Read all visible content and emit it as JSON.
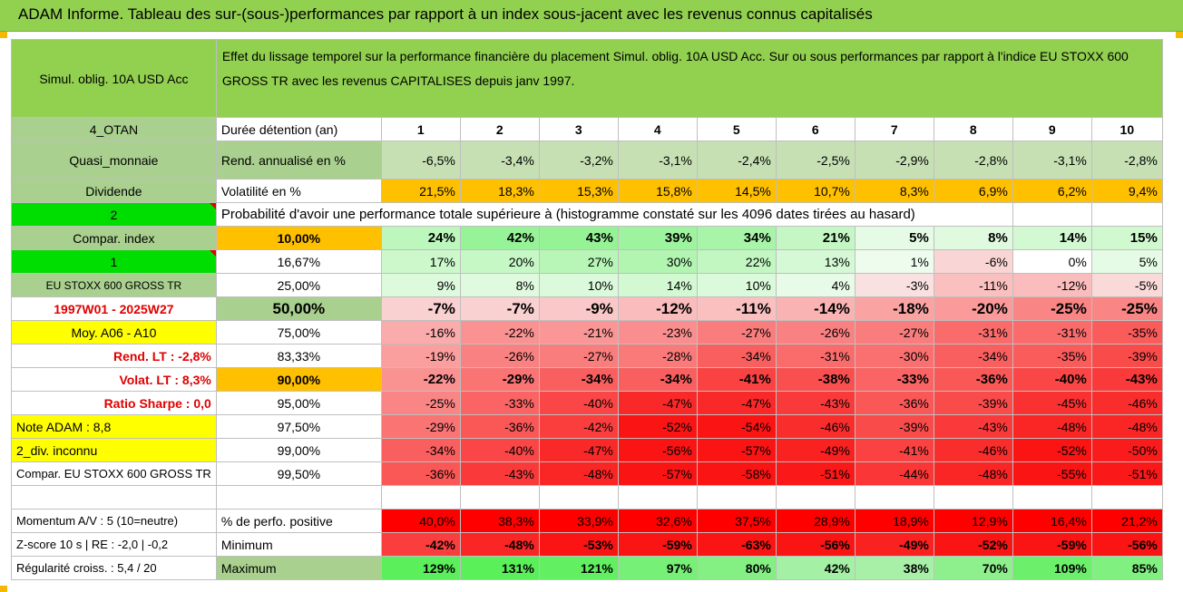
{
  "title": "ADAM Informe. Tableau des sur-(sous-)performances par rapport à un index sous-jacent avec les revenus connus capitalisés",
  "header": {
    "fund": "Simul. oblig. 10A USD Acc",
    "description": "Effet du lissage temporel sur la performance financière du placement Simul. oblig. 10A USD Acc. Sur ou sous performances par rapport à l'indice EU STOXX 600 GROSS TR avec les revenus CAPITALISES depuis janv 1997."
  },
  "side": {
    "otan": "4_OTAN",
    "quasi": "Quasi_monnaie",
    "dividende": "Dividende",
    "two": "2",
    "compar_index": "Compar. index",
    "one": "1",
    "index_name": "EU STOXX 600 GROSS TR",
    "period": "1997W01 - 2025W27",
    "moy": "Moy. A06 - A10",
    "rend_lt": "Rend. LT :    -2,8%",
    "volat_lt": "Volat. LT :    8,3%",
    "sharpe": "Ratio Sharpe :    0,0",
    "note": "Note ADAM : 8,8",
    "div": "2_div. inconnu",
    "compar_full": "Compar. EU STOXX 600 GROSS TR",
    "momentum": "Momentum A/V : 5 (10=neutre)",
    "zscore": "Z-score 10 s | RE : -2,0 | -0,2",
    "regularite": "Régularité croiss. : 5,4 / 20"
  },
  "labels": {
    "duree": "Durée détention (an)",
    "rend": "Rend. annualisé en %",
    "vol": "Volatilité en %",
    "proba": "Probabilité d'avoir une performance totale supérieure à (histogramme constaté sur les 4096 dates tirées au hasard)",
    "pct_pos": "% de perfo. positive",
    "min": "Minimum",
    "max": "Maximum"
  },
  "years": [
    "1",
    "2",
    "3",
    "4",
    "5",
    "6",
    "7",
    "8",
    "9",
    "10"
  ],
  "rend": [
    "-6,5%",
    "-3,4%",
    "-3,2%",
    "-3,1%",
    "-2,4%",
    "-2,5%",
    "-2,9%",
    "-2,8%",
    "-3,1%",
    "-2,8%"
  ],
  "vol": [
    "21,5%",
    "18,3%",
    "15,3%",
    "15,8%",
    "14,5%",
    "10,7%",
    "8,3%",
    "6,9%",
    "6,2%",
    "9,4%"
  ],
  "quantiles": [
    {
      "q": "10,00%",
      "vals": [
        "24%",
        "42%",
        "43%",
        "39%",
        "34%",
        "21%",
        "5%",
        "8%",
        "14%",
        "15%"
      ],
      "bold": true
    },
    {
      "q": "16,67%",
      "vals": [
        "17%",
        "20%",
        "27%",
        "30%",
        "22%",
        "13%",
        "1%",
        "-6%",
        "0%",
        "5%"
      ],
      "bold": false
    },
    {
      "q": "25,00%",
      "vals": [
        "9%",
        "8%",
        "10%",
        "14%",
        "10%",
        "4%",
        "-3%",
        "-11%",
        "-12%",
        "-5%"
      ],
      "bold": false
    },
    {
      "q": "50,00%",
      "vals": [
        "-7%",
        "-7%",
        "-9%",
        "-12%",
        "-11%",
        "-14%",
        "-18%",
        "-20%",
        "-25%",
        "-25%"
      ],
      "bold": true
    },
    {
      "q": "75,00%",
      "vals": [
        "-16%",
        "-22%",
        "-21%",
        "-23%",
        "-27%",
        "-26%",
        "-27%",
        "-31%",
        "-31%",
        "-35%"
      ],
      "bold": false
    },
    {
      "q": "83,33%",
      "vals": [
        "-19%",
        "-26%",
        "-27%",
        "-28%",
        "-34%",
        "-31%",
        "-30%",
        "-34%",
        "-35%",
        "-39%"
      ],
      "bold": false
    },
    {
      "q": "90,00%",
      "vals": [
        "-22%",
        "-29%",
        "-34%",
        "-34%",
        "-41%",
        "-38%",
        "-33%",
        "-36%",
        "-40%",
        "-43%"
      ],
      "bold": true
    },
    {
      "q": "95,00%",
      "vals": [
        "-25%",
        "-33%",
        "-40%",
        "-47%",
        "-47%",
        "-43%",
        "-36%",
        "-39%",
        "-45%",
        "-46%"
      ],
      "bold": false
    },
    {
      "q": "97,50%",
      "vals": [
        "-29%",
        "-36%",
        "-42%",
        "-52%",
        "-54%",
        "-46%",
        "-39%",
        "-43%",
        "-48%",
        "-48%"
      ],
      "bold": false
    },
    {
      "q": "99,00%",
      "vals": [
        "-34%",
        "-40%",
        "-47%",
        "-56%",
        "-57%",
        "-49%",
        "-41%",
        "-46%",
        "-52%",
        "-50%"
      ],
      "bold": false
    },
    {
      "q": "99,50%",
      "vals": [
        "-36%",
        "-43%",
        "-48%",
        "-57%",
        "-58%",
        "-51%",
        "-44%",
        "-48%",
        "-55%",
        "-51%"
      ],
      "bold": false
    }
  ],
  "pct_pos": [
    "40,0%",
    "38,3%",
    "33,9%",
    "32,6%",
    "37,5%",
    "28,9%",
    "18,9%",
    "12,9%",
    "16,4%",
    "21,2%"
  ],
  "minimum": [
    "-42%",
    "-48%",
    "-53%",
    "-59%",
    "-63%",
    "-56%",
    "-49%",
    "-52%",
    "-59%",
    "-56%"
  ],
  "maximum": [
    "129%",
    "131%",
    "121%",
    "97%",
    "80%",
    "42%",
    "38%",
    "70%",
    "109%",
    "85%"
  ]
}
